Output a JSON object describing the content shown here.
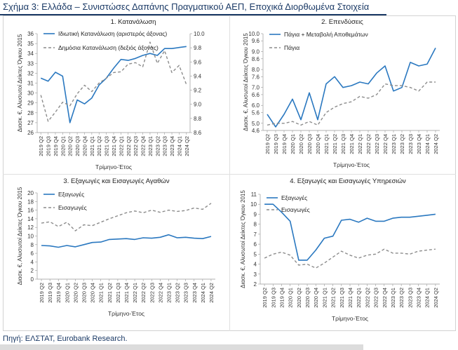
{
  "figure": {
    "title": "Σχήμα 3: Ελλάδα – Συνιστώσες Δαπάνης Πραγματικού ΑΕΠ, Εποχικά Διορθωμένα Στοιχεία",
    "source": "Πηγή: ΕΛΣΤΑΤ, Eurobank Research."
  },
  "colors": {
    "primary": "#2a78c0",
    "secondary": "#8c8c8c",
    "title": "#1b3a66",
    "grid": "#d9d9d9"
  },
  "chart_data": [
    {
      "type": "line",
      "title": "1. Κατανάλωση",
      "xlabel": "Τρίμηνο-Έτος",
      "ylabel": "Διασκ. €, Αλυσωτοί Δείκτες Όγκου 2015",
      "x": [
        "2019 Q2",
        "2019 Q3",
        "2019 Q4",
        "2020 Q1",
        "2020 Q2",
        "2020 Q3",
        "2020 Q4",
        "2021 Q1",
        "2021 Q2",
        "2021 Q3",
        "2021 Q4",
        "2022 Q1",
        "2022 Q2",
        "2022 Q3",
        "2022 Q4",
        "2023 Q1",
        "2023 Q2",
        "2023 Q3",
        "2023 Q4",
        "2024 Q1",
        "2024 Q2"
      ],
      "ylim": [
        26,
        36
      ],
      "yticks": [
        26,
        27,
        28,
        29,
        30,
        31,
        32,
        33,
        34,
        35,
        36
      ],
      "y2lim": [
        8.6,
        10.0
      ],
      "y2ticks": [
        "8.6",
        "8.8",
        "9.0",
        "9.2",
        "9.4",
        "9.6",
        "9.8",
        "10.0"
      ],
      "series": [
        {
          "name": "Ιδιωτική Κατανάλωση (αριστερός άξονας)",
          "style": "solid",
          "axis": "left",
          "values": [
            31.5,
            31.2,
            32.1,
            31.7,
            27.0,
            29.3,
            28.9,
            29.5,
            30.8,
            31.5,
            32.5,
            33.4,
            33.3,
            33.5,
            33.8,
            34.0,
            33.8,
            34.5,
            34.5,
            34.6,
            34.7
          ]
        },
        {
          "name": "Δημόσια Κατανάλωση (δεξιός άξονας)",
          "style": "dashed",
          "axis": "right",
          "values": [
            9.13,
            8.76,
            8.89,
            9.03,
            8.98,
            9.15,
            9.27,
            9.18,
            9.3,
            9.37,
            9.45,
            9.46,
            9.57,
            9.59,
            9.53,
            9.88,
            9.58,
            9.76,
            9.45,
            9.55,
            9.28
          ]
        }
      ]
    },
    {
      "type": "line",
      "title": "2. Επενδύσεις",
      "xlabel": "Τρίμηνο-Έτος",
      "ylabel": "Διασκ. €, Αλυσωτοί Δείκτες Όγκου 2015",
      "x": [
        "2019 Q2",
        "2019 Q3",
        "2019 Q4",
        "2020 Q1",
        "2020 Q2",
        "2020 Q3",
        "2020 Q4",
        "2021 Q1",
        "2021 Q2",
        "2021 Q3",
        "2021 Q4",
        "2022 Q1",
        "2022 Q2",
        "2022 Q3",
        "2022 Q4",
        "2023 Q1",
        "2023 Q2",
        "2023 Q3",
        "2023 Q4",
        "2024 Q1",
        "2024 Q2"
      ],
      "ylim": [
        4.6,
        10.0
      ],
      "yticks": [
        "4.6",
        "5.0",
        "5.6",
        "6.0",
        "6.6",
        "7.0",
        "7.6",
        "8.0",
        "8.6",
        "9.0",
        "9.6",
        "10.0"
      ],
      "series": [
        {
          "name": "Πάγια + Μεταβολή Αποθεμάτων",
          "style": "solid",
          "values": [
            5.5,
            4.8,
            5.5,
            6.35,
            5.2,
            6.7,
            5.2,
            7.2,
            7.6,
            7.0,
            7.1,
            7.3,
            7.2,
            7.8,
            8.2,
            6.8,
            7.0,
            8.4,
            8.2,
            8.3,
            9.2
          ]
        },
        {
          "name": "Πάγια",
          "style": "dashed",
          "values": [
            4.9,
            5.0,
            5.0,
            5.1,
            4.9,
            5.1,
            4.9,
            5.6,
            5.9,
            6.1,
            6.2,
            6.5,
            6.4,
            6.6,
            7.2,
            7.1,
            7.1,
            7.0,
            6.8,
            7.3,
            7.3
          ]
        }
      ]
    },
    {
      "type": "line",
      "title": "3. Εξαγωγές και Εισαγωγές Αγαθών",
      "xlabel": "Τρίμηνο-Έτος",
      "ylabel": "Διασκ. €, Αλυσωτοί Δείκτες Όγκου 2015",
      "x": [
        "2019 Q2",
        "2019 Q3",
        "2019 Q4",
        "2020 Q1",
        "2020 Q2",
        "2020 Q3",
        "2020 Q4",
        "2021 Q1",
        "2021 Q2",
        "2021 Q3",
        "2021 Q4",
        "2022 Q1",
        "2022 Q2",
        "2022 Q3",
        "2022 Q4",
        "2023 Q1",
        "2023 Q2",
        "2023 Q3",
        "2023 Q4",
        "2024 Q1",
        "2024 Q2"
      ],
      "ylim": [
        0,
        20
      ],
      "yticks": [
        0,
        2,
        4,
        6,
        8,
        10,
        12,
        14,
        16,
        18,
        20
      ],
      "series": [
        {
          "name": "Εξαγωγές",
          "style": "solid",
          "values": [
            7.8,
            7.7,
            7.4,
            7.8,
            7.5,
            8.0,
            8.5,
            8.6,
            9.2,
            9.3,
            9.4,
            9.2,
            9.6,
            9.5,
            9.7,
            10.3,
            9.6,
            9.7,
            9.5,
            9.4,
            9.9
          ]
        },
        {
          "name": "Εισαγωγές",
          "style": "dashed",
          "values": [
            13.0,
            13.3,
            12.2,
            13.2,
            11.2,
            12.6,
            12.4,
            13.2,
            14.0,
            14.7,
            15.4,
            15.8,
            15.4,
            16.0,
            15.5,
            16.0,
            15.7,
            15.9,
            16.5,
            16.2,
            17.6
          ]
        }
      ]
    },
    {
      "type": "line",
      "title": "4. Εξαγωγές και Εισαγωγές Υπηρεσιών",
      "xlabel": "Τρίμηνο-Έτος",
      "ylabel": "Διασκ. €, Αλυσωτοί Δείκτες Όγκου 2015",
      "x": [
        "2019 Q2",
        "2019 Q3",
        "2019 Q4",
        "2020 Q1",
        "2020 Q2",
        "2020 Q3",
        "2020 Q4",
        "2021 Q1",
        "2021 Q2",
        "2021 Q3",
        "2021 Q4",
        "2022 Q1",
        "2022 Q2",
        "2022 Q3",
        "2022 Q4",
        "2023 Q1",
        "2023 Q2",
        "2023 Q3",
        "2023 Q4",
        "2024 Q1",
        "2024 Q2"
      ],
      "ylim": [
        2,
        11
      ],
      "yticks": [
        2,
        3,
        4,
        5,
        6,
        7,
        8,
        9,
        10,
        11
      ],
      "series": [
        {
          "name": "Εξαγωγές",
          "style": "solid",
          "values": [
            10.0,
            10.0,
            9.2,
            8.3,
            4.4,
            4.4,
            5.4,
            6.6,
            6.8,
            8.4,
            8.5,
            8.2,
            8.6,
            8.3,
            8.3,
            8.6,
            8.7,
            8.7,
            8.8,
            8.9,
            9.0
          ]
        },
        {
          "name": "Εισαγωγές",
          "style": "dashed",
          "values": [
            4.6,
            5.0,
            5.2,
            4.9,
            3.9,
            4.0,
            3.6,
            4.1,
            4.7,
            5.3,
            4.9,
            4.6,
            4.9,
            5.0,
            5.5,
            5.1,
            5.1,
            5.0,
            5.3,
            5.4,
            5.5
          ]
        }
      ]
    }
  ]
}
